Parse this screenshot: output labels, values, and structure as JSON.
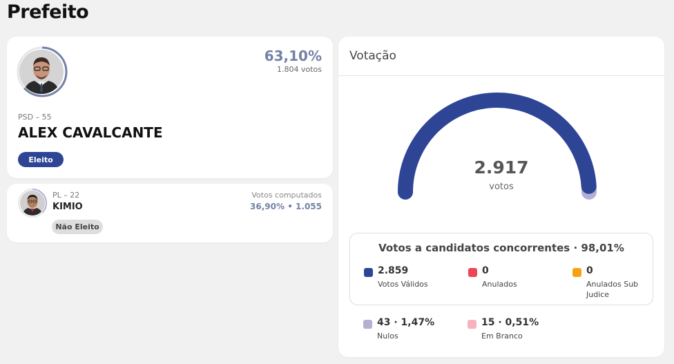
{
  "page": {
    "title": "Prefeito"
  },
  "elected": {
    "percentage": "63,10%",
    "votes": "1.804 votos",
    "party": "PSD – 55",
    "name": "ALEX CAVALCANTE",
    "status": "Eleito",
    "vote_share": 0.631
  },
  "candidate2": {
    "party": "PL – 22",
    "name": "KIMIO",
    "votes_label": "Votos computados",
    "votes_text": "36,90%  •  1.055",
    "status": "Não Eleito",
    "vote_share": 0.369
  },
  "votacao": {
    "title": "Votação",
    "total": "2.917",
    "total_label": "votos",
    "gauge_fraction_valid": 0.9801,
    "summary_title": "Votos a candidatos concorrentes · 98,01%",
    "stats": [
      {
        "value": "2.859",
        "label": "Votos Válidos",
        "color": "#2e4596"
      },
      {
        "value": "0",
        "label": "Anulados",
        "color": "#ee4458"
      },
      {
        "value": "0",
        "label": "Anulados Sub Judice",
        "color": "#f5a30f"
      },
      {
        "value": "43 · 1,47%",
        "label": "Nulos",
        "color": "#b3b0d6"
      },
      {
        "value": "15 · 0,51%",
        "label": "Em Branco",
        "color": "#f6b3bd"
      }
    ]
  },
  "colors": {
    "accent": "#2e4596",
    "muted_accent": "#7481a6",
    "secondary": "#b3b0d6"
  }
}
